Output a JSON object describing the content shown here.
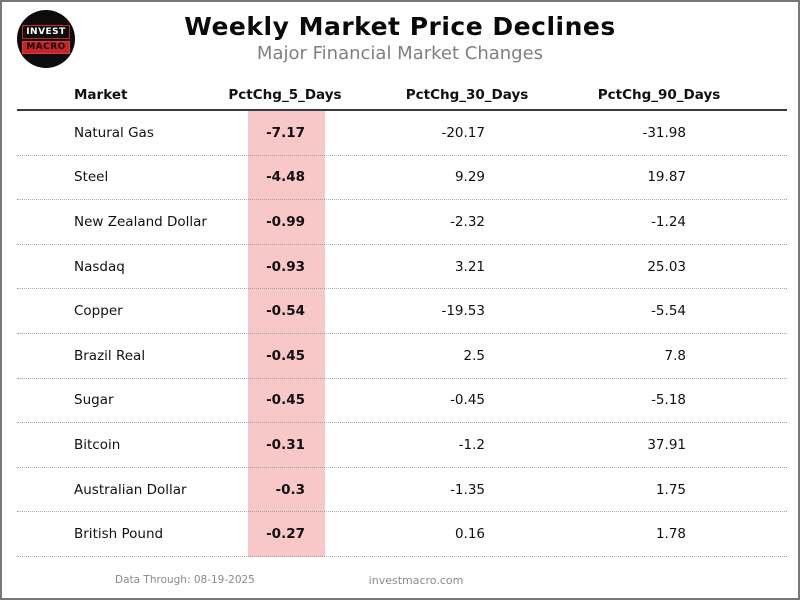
{
  "logo": {
    "line1": "INVEST",
    "line2": "MACRO"
  },
  "chart_data": {
    "type": "table",
    "title": "Weekly Market Price Declines",
    "subtitle": "Major Financial Market Changes",
    "columns": [
      "Market",
      "PctChg_5_Days",
      "PctChg_30_Days",
      "PctChg_90_Days"
    ],
    "rows": [
      [
        "Natural Gas",
        "-7.17",
        "-20.17",
        "-31.98"
      ],
      [
        "Steel",
        "-4.48",
        "9.29",
        "19.87"
      ],
      [
        "New Zealand Dollar",
        "-0.99",
        "-2.32",
        "-1.24"
      ],
      [
        "Nasdaq",
        "-0.93",
        "3.21",
        "25.03"
      ],
      [
        "Copper",
        "-0.54",
        "-19.53",
        "-5.54"
      ],
      [
        "Brazil Real",
        "-0.45",
        "2.5",
        "7.8"
      ],
      [
        "Sugar",
        "-0.45",
        "-0.45",
        "-5.18"
      ],
      [
        "Bitcoin",
        "-0.31",
        "-1.2",
        "37.91"
      ],
      [
        "Australian Dollar",
        "-0.3",
        "-1.35",
        "1.75"
      ],
      [
        "British Pound",
        "-0.27",
        "0.16",
        "1.78"
      ]
    ],
    "layout": {
      "highlight_column": "PctChg_5_Days",
      "highlight_color": "#f8c7c7",
      "row_separator": "dotted",
      "header_underline": "solid"
    }
  },
  "colors": {
    "highlight_pink": "#f8c7c7",
    "logo_red": "#c4262b",
    "subtitle_gray": "#7f7f7f",
    "footer_gray": "#8a8a8a"
  },
  "footer": {
    "data_through": "Data Through: 08-19-2025",
    "site": "investmacro.com"
  }
}
